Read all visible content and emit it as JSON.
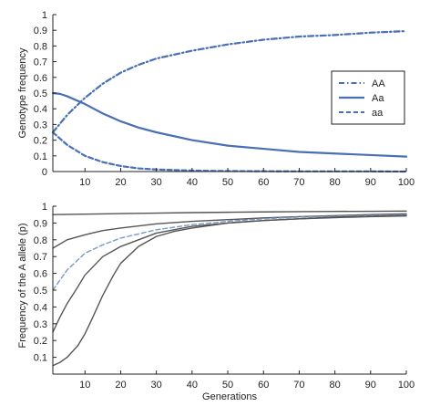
{
  "chart_data": [
    {
      "type": "line",
      "xlabel": "",
      "ylabel": "Genotype frequency",
      "xlim": [
        1,
        100
      ],
      "ylim": [
        0,
        1
      ],
      "x_ticks": [
        10,
        20,
        30,
        40,
        50,
        60,
        70,
        80,
        90,
        100
      ],
      "y_ticks": [
        0,
        0.1,
        0.2,
        0.3,
        0.4,
        0.5,
        0.6,
        0.7,
        0.8,
        0.9,
        1
      ],
      "y_tick_labels": [
        "0",
        "0.1",
        "0.2",
        "0.3",
        "0.4",
        "0.5",
        "0.6",
        "0.7",
        "0.8",
        "0.9",
        "1"
      ],
      "legend": {
        "placement": "right",
        "entries": [
          "AA",
          "Aa",
          "aa"
        ]
      },
      "grid": false,
      "series": [
        {
          "name": "AA",
          "style": "dash-dot",
          "color": "#4a6fb5",
          "x": [
            1,
            5,
            10,
            15,
            20,
            25,
            30,
            40,
            50,
            60,
            70,
            80,
            90,
            100
          ],
          "y": [
            0.25,
            0.36,
            0.47,
            0.56,
            0.63,
            0.68,
            0.72,
            0.77,
            0.81,
            0.84,
            0.86,
            0.87,
            0.885,
            0.895
          ]
        },
        {
          "name": "Aa",
          "style": "solid",
          "color": "#4a6fb5",
          "x": [
            1,
            3,
            5,
            10,
            15,
            20,
            25,
            30,
            40,
            50,
            60,
            70,
            80,
            90,
            100
          ],
          "y": [
            0.5,
            0.495,
            0.48,
            0.43,
            0.37,
            0.32,
            0.28,
            0.25,
            0.2,
            0.165,
            0.145,
            0.125,
            0.115,
            0.105,
            0.095
          ]
        },
        {
          "name": "aa",
          "style": "dashed",
          "color": "#4a6fb5",
          "x": [
            1,
            5,
            10,
            15,
            20,
            25,
            30,
            40,
            50,
            60,
            70,
            80,
            90,
            100
          ],
          "y": [
            0.25,
            0.17,
            0.1,
            0.06,
            0.035,
            0.02,
            0.013,
            0.006,
            0.003,
            0.002,
            0.001,
            0.001,
            0.001,
            0.0
          ]
        }
      ]
    },
    {
      "type": "line",
      "xlabel": "Generations",
      "ylabel": "Frequency of the A allele (p)",
      "xlim": [
        1,
        100
      ],
      "ylim": [
        0,
        1
      ],
      "x_ticks": [
        10,
        20,
        30,
        40,
        50,
        60,
        70,
        80,
        90,
        100
      ],
      "y_ticks": [
        0.1,
        0.2,
        0.3,
        0.4,
        0.5,
        0.6,
        0.7,
        0.8,
        0.9,
        1
      ],
      "y_tick_labels": [
        "0.1",
        "0.2",
        "0.3",
        "0.4",
        "0.5",
        "0.6",
        "0.7",
        "0.8",
        "0.9",
        "1"
      ],
      "grid": false,
      "series": [
        {
          "style": "solid",
          "color": "#555555",
          "x": [
            1,
            10,
            20,
            30,
            40,
            50,
            60,
            70,
            80,
            90,
            100
          ],
          "y": [
            0.95,
            0.953,
            0.956,
            0.959,
            0.962,
            0.964,
            0.966,
            0.968,
            0.969,
            0.97,
            0.971
          ]
        },
        {
          "style": "solid",
          "color": "#555555",
          "x": [
            1,
            5,
            10,
            15,
            20,
            30,
            40,
            50,
            60,
            70,
            80,
            90,
            100
          ],
          "y": [
            0.75,
            0.8,
            0.83,
            0.855,
            0.87,
            0.895,
            0.91,
            0.92,
            0.93,
            0.938,
            0.944,
            0.95,
            0.955
          ]
        },
        {
          "style": "dashed",
          "color": "#7a99c8",
          "x": [
            1,
            5,
            10,
            15,
            20,
            30,
            40,
            50,
            60,
            70,
            80,
            90,
            100
          ],
          "y": [
            0.5,
            0.62,
            0.72,
            0.77,
            0.81,
            0.86,
            0.89,
            0.91,
            0.925,
            0.935,
            0.94,
            0.945,
            0.95
          ]
        },
        {
          "style": "solid",
          "color": "#555555",
          "x": [
            1,
            3,
            5,
            8,
            10,
            15,
            20,
            25,
            30,
            40,
            50,
            60,
            70,
            80,
            90,
            100
          ],
          "y": [
            0.25,
            0.34,
            0.42,
            0.52,
            0.59,
            0.7,
            0.76,
            0.8,
            0.84,
            0.88,
            0.9,
            0.915,
            0.925,
            0.935,
            0.94,
            0.945
          ]
        },
        {
          "style": "solid",
          "color": "#555555",
          "x": [
            1,
            3,
            5,
            8,
            10,
            12,
            15,
            18,
            20,
            25,
            30,
            35,
            40,
            50,
            60,
            70,
            80,
            90,
            100
          ],
          "y": [
            0.05,
            0.07,
            0.1,
            0.17,
            0.24,
            0.33,
            0.47,
            0.59,
            0.66,
            0.76,
            0.82,
            0.85,
            0.87,
            0.9,
            0.915,
            0.925,
            0.932,
            0.938,
            0.942
          ]
        }
      ]
    }
  ]
}
